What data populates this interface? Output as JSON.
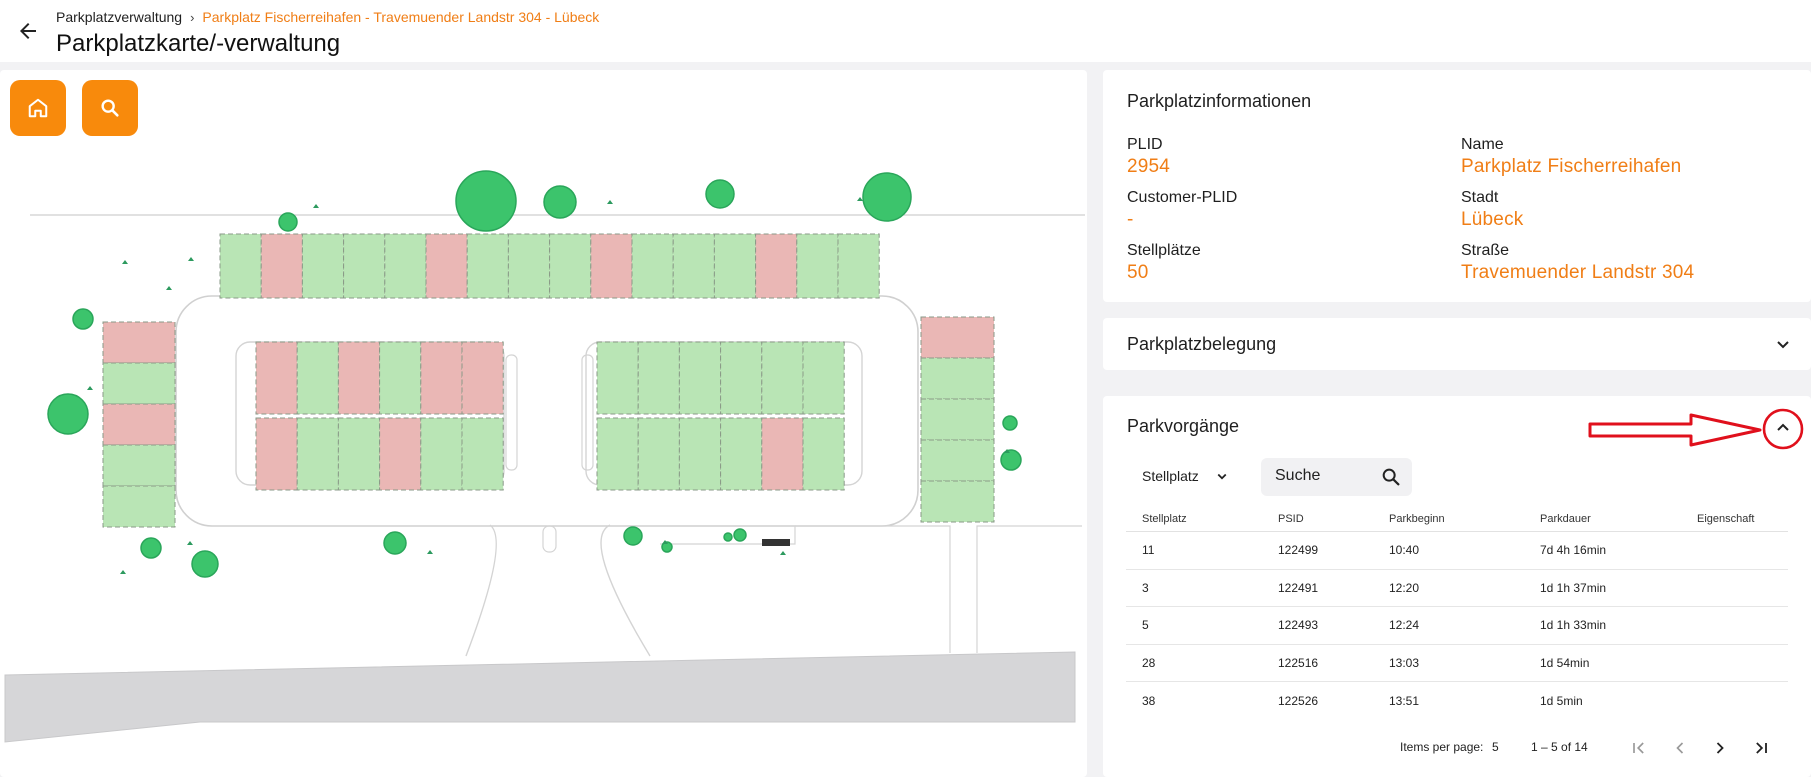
{
  "header": {
    "breadcrumb_root": "Parkplatzverwaltung",
    "breadcrumb_current": "Parkplatz Fischerreihafen - Travemuender Landstr 304 - Lübeck",
    "title": "Parkplatzkarte/-verwaltung"
  },
  "map": {
    "home_icon": "home-icon",
    "search_icon": "search-icon"
  },
  "info": {
    "title": "Parkplatzinformationen",
    "plid_label": "PLID",
    "plid_value": "2954",
    "customer_plid_label": "Customer-PLID",
    "customer_plid_value": "-",
    "spots_label": "Stellplätze",
    "spots_value": "50",
    "name_label": "Name",
    "name_value": "Parkplatz Fischerreihafen",
    "city_label": "Stadt",
    "city_value": "Lübeck",
    "street_label": "Straße",
    "street_value": "Travemuender Landstr 304"
  },
  "occupancy": {
    "title": "Parkplatzbelegung"
  },
  "sessions": {
    "title": "Parkvorgänge",
    "filter_value": "Stellplatz",
    "search_placeholder": "Suche",
    "columns": [
      "Stellplatz",
      "PSID",
      "Parkbeginn",
      "Parkdauer",
      "Eigenschaft"
    ],
    "rows": [
      [
        "11",
        "122499",
        "10:40",
        "7d 4h 16min",
        ""
      ],
      [
        "3",
        "122491",
        "12:20",
        "1d 1h 37min",
        ""
      ],
      [
        "5",
        "122493",
        "12:24",
        "1d 1h 33min",
        ""
      ],
      [
        "28",
        "122516",
        "13:03",
        "1d 54min",
        ""
      ],
      [
        "38",
        "122526",
        "13:51",
        "1d 5min",
        ""
      ]
    ],
    "items_per_page_label": "Items per page:",
    "items_per_page_value": "5",
    "range_label": "1 – 5 of 14"
  },
  "colors": {
    "accent": "#f07e16",
    "button_orange": "#f88a0c",
    "spot_free": "#b9e5b5",
    "spot_occupied": "#eab7b5",
    "tree": "#3cc46c",
    "annotation_red": "#e0101c"
  }
}
